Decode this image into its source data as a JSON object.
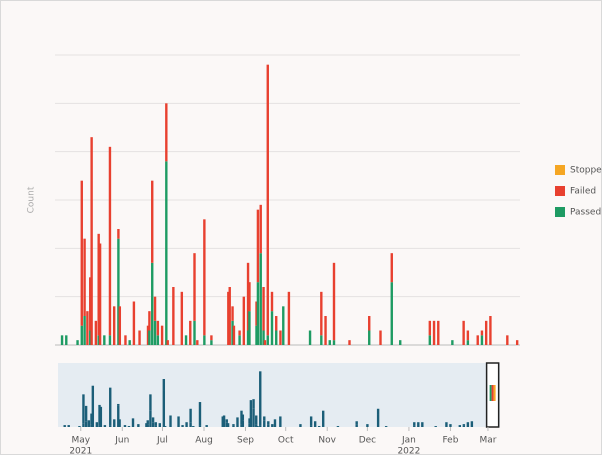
{
  "chart_data": {
    "type": "bar",
    "stacked": true,
    "y_label": "Count",
    "x": [
      -12,
      -9,
      -1,
      2,
      4,
      6,
      8,
      9,
      12,
      14,
      15,
      18,
      22,
      25,
      28,
      29,
      33,
      36,
      39,
      43,
      49,
      50,
      52,
      54,
      56,
      59,
      62,
      63,
      67,
      73,
      76,
      79,
      82,
      84,
      89,
      94,
      106,
      107,
      109,
      110,
      114,
      117,
      120,
      121,
      126,
      127,
      129,
      131,
      132,
      134,
      137,
      140,
      143,
      145,
      149,
      164,
      172,
      175,
      178,
      181,
      192,
      206,
      214,
      222,
      228,
      249,
      252,
      255,
      265,
      273,
      276,
      283,
      286,
      289,
      292,
      304,
      311
    ],
    "series": [
      {
        "name": "Passed",
        "color": "#1e9b63",
        "values": [
          2,
          2,
          1,
          4,
          6,
          0,
          3,
          0,
          0,
          2,
          0,
          2,
          2,
          0,
          22,
          0,
          0,
          1,
          0,
          0,
          0,
          3,
          17,
          5,
          2,
          0,
          38,
          0,
          0,
          0,
          2,
          0,
          5,
          0,
          2,
          1,
          0,
          0,
          5,
          0,
          2,
          0,
          3,
          7,
          4,
          13,
          19,
          3,
          0,
          2,
          7,
          3,
          0,
          8,
          0,
          3,
          2,
          0,
          1,
          1,
          0,
          3,
          0,
          13,
          1,
          2,
          0,
          0,
          1,
          0,
          1,
          0,
          2,
          0,
          0,
          0,
          0
        ]
      },
      {
        "name": "Failed",
        "color": "#e8402f",
        "values": [
          0,
          0,
          0,
          30,
          16,
          7,
          11,
          43,
          5,
          21,
          21,
          0,
          39,
          8,
          2,
          8,
          2,
          0,
          9,
          3,
          4,
          4,
          17,
          5,
          3,
          4,
          12,
          1,
          12,
          11,
          0,
          5,
          14,
          1,
          24,
          1,
          11,
          12,
          3,
          4,
          1,
          10,
          14,
          6,
          5,
          15,
          10,
          9,
          1,
          56,
          4,
          3,
          3,
          0,
          11,
          0,
          9,
          6,
          0,
          16,
          1,
          3,
          3,
          6,
          0,
          3,
          5,
          5,
          0,
          5,
          2,
          2,
          1,
          5,
          6,
          2,
          1
        ]
      },
      {
        "name": "Stopped",
        "color": "#f5a623",
        "values": [
          0,
          0,
          0,
          0,
          0,
          0,
          0,
          0,
          0,
          0,
          0,
          0,
          0,
          0,
          0,
          0,
          0,
          0,
          0,
          0,
          0,
          0,
          0,
          0,
          0,
          0,
          0,
          0,
          0,
          0,
          0,
          0,
          0,
          0,
          0,
          0,
          0,
          0,
          0,
          0,
          0,
          0,
          0,
          0,
          0,
          0,
          0,
          0,
          0,
          0,
          0,
          0,
          0,
          0,
          0,
          0,
          0,
          0,
          0,
          0,
          0,
          0,
          0,
          0,
          0,
          0,
          0,
          0,
          0,
          0,
          0,
          0,
          0,
          0,
          0,
          0,
          0
        ]
      }
    ],
    "legend_order": [
      "Stopped",
      "Failed",
      "Passed"
    ],
    "xlim": [
      -17,
      313
    ],
    "xticks": [
      {
        "value": 0,
        "label": "May",
        "sublabel": "2021"
      },
      {
        "value": 31,
        "label": "Jun"
      },
      {
        "value": 61,
        "label": "Jul"
      },
      {
        "value": 92,
        "label": "Aug"
      },
      {
        "value": 123,
        "label": "Sep"
      },
      {
        "value": 153,
        "label": "Oct"
      },
      {
        "value": 184,
        "label": "Nov"
      },
      {
        "value": 214,
        "label": "Dec"
      },
      {
        "value": 245,
        "label": "Jan",
        "sublabel": "2022"
      },
      {
        "value": 276,
        "label": "Feb"
      },
      {
        "value": 304,
        "label": "Mar"
      }
    ],
    "ylim": [
      0,
      60
    ],
    "ygrid": [
      0,
      10,
      20,
      30,
      40,
      50,
      60
    ],
    "grid": true,
    "navigator_color": "#1b5e78",
    "brush": [
      303,
      312
    ]
  }
}
